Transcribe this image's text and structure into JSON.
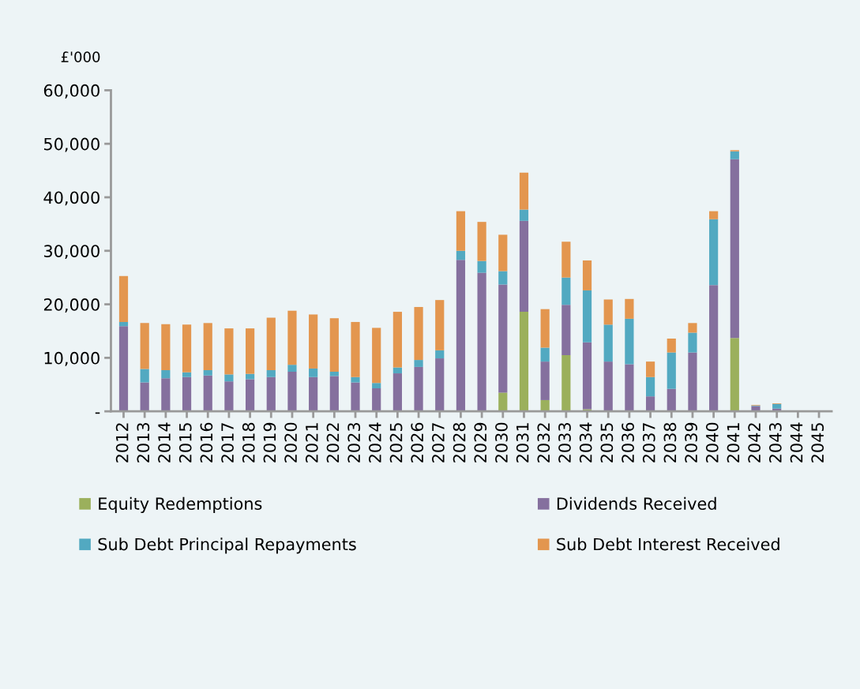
{
  "chart_data": {
    "type": "bar",
    "stacked": true,
    "ylabel": "£'000",
    "categories": [
      "2012",
      "2013",
      "2014",
      "2015",
      "2016",
      "2017",
      "2018",
      "2019",
      "2020",
      "2021",
      "2022",
      "2023",
      "2024",
      "2025",
      "2026",
      "2027",
      "2028",
      "2029",
      "2030",
      "2031",
      "2032",
      "2033",
      "2034",
      "2035",
      "2036",
      "2037",
      "2038",
      "2039",
      "2040",
      "2041",
      "2042",
      "2043",
      "2044",
      "2045"
    ],
    "series": [
      {
        "name": "Equity Redemptions",
        "color": "#9bb05c",
        "values": [
          0,
          0,
          0,
          0,
          0,
          0,
          0,
          0,
          0,
          0,
          0,
          0,
          0,
          0,
          0,
          0,
          0,
          0,
          3500,
          18600,
          2100,
          10500,
          400,
          0,
          0,
          0,
          0,
          0,
          0,
          13700,
          0,
          0,
          0,
          0
        ]
      },
      {
        "name": "Dividends Received",
        "color": "#85709e",
        "values": [
          15900,
          5400,
          6200,
          6400,
          6700,
          5600,
          6000,
          6400,
          7400,
          6400,
          6600,
          5400,
          4300,
          7100,
          8300,
          9900,
          28300,
          25900,
          20200,
          17000,
          7200,
          9400,
          12500,
          9300,
          8800,
          2800,
          4200,
          11000,
          23600,
          33400,
          1000,
          500,
          0,
          0
        ]
      },
      {
        "name": "Sub Debt Principal Repayments",
        "color": "#52a9c1",
        "values": [
          800,
          2500,
          1500,
          900,
          1000,
          1300,
          1000,
          1300,
          1300,
          1600,
          800,
          1000,
          1000,
          1100,
          1300,
          1500,
          1700,
          2200,
          2500,
          2100,
          2600,
          5100,
          9700,
          6900,
          8500,
          3600,
          6800,
          3700,
          12300,
          1500,
          100,
          900,
          0,
          0
        ]
      },
      {
        "name": "Sub Debt Interest Received",
        "color": "#e3964f",
        "values": [
          8600,
          8600,
          8600,
          8900,
          8800,
          8600,
          8500,
          9800,
          10100,
          10100,
          10000,
          10300,
          10300,
          10400,
          9900,
          9400,
          7400,
          7300,
          6800,
          6900,
          7200,
          6700,
          5600,
          4700,
          3700,
          2900,
          2600,
          1800,
          1500,
          200,
          100,
          100,
          0,
          0
        ]
      }
    ],
    "ylim": [
      0,
      60000
    ],
    "yticks": [
      {
        "value": 0,
        "label": "-"
      },
      {
        "value": 10000,
        "label": "10,000"
      },
      {
        "value": 20000,
        "label": "20,000"
      },
      {
        "value": 30000,
        "label": "30,000"
      },
      {
        "value": 40000,
        "label": "40,000"
      },
      {
        "value": 50000,
        "label": "50,000"
      },
      {
        "value": 60000,
        "label": "60,000"
      }
    ],
    "grid": false,
    "legend": "bottom"
  }
}
